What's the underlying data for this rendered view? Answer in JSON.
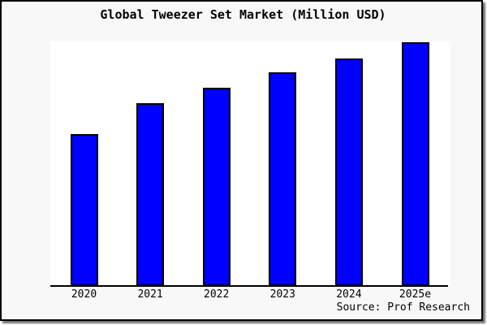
{
  "chart": {
    "title": "Global Tweezer Set Market (Million USD)",
    "source": "Source: Prof Research"
  },
  "chart_data": {
    "type": "bar",
    "title": "Global Tweezer Set Market (Million USD)",
    "categories": [
      "2020",
      "2021",
      "2022",
      "2023",
      "2024",
      "2025e"
    ],
    "values": [
      62.3,
      75.0,
      81.3,
      87.7,
      93.3,
      100.0
    ],
    "values_unit": "relative index (no y-axis tick labels shown; max bar = 100)",
    "xlabel": "",
    "ylabel": "",
    "ylim": [
      0,
      100
    ],
    "y_axis_labels_visible": false,
    "grid": false,
    "legend": "none",
    "bar_color": "#0000ff",
    "bar_border_color": "#000000",
    "plot_bg_color": "#ffffff",
    "figure_bg_color": "#f8f8f8",
    "source": "Source: Prof Research"
  }
}
